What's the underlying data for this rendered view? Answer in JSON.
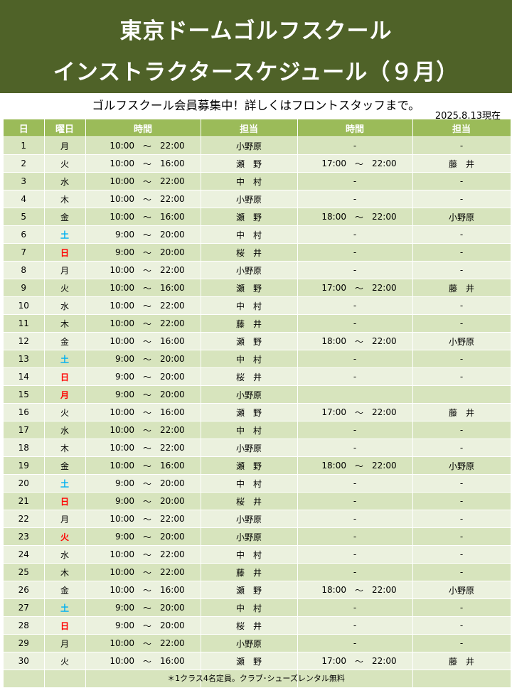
{
  "header": {
    "title_line1": "東京ドームゴルフスクール",
    "title_line2": "インストラクタースケジュール（９月）",
    "subtitle": "ゴルフスクール会員募集中！詳しくはフロントスタッフまで。",
    "as_of": "2025.8.13現在",
    "bg_color": "#4f6228"
  },
  "table": {
    "headers": [
      "日",
      "曜日",
      "時間",
      "担当",
      "時間",
      "担当"
    ],
    "header_color": "#9bbb59",
    "row_colors": [
      "#d7e4bd",
      "#ebf1de"
    ],
    "tilde": "～",
    "rows": [
      {
        "day": "1",
        "weekday": "月",
        "start1": "10:00",
        "end1": "22:00",
        "staff1": "小野原",
        "start2": "",
        "end2": "",
        "dash2": "-",
        "staff2": "-"
      },
      {
        "day": "2",
        "weekday": "火",
        "start1": "10:00",
        "end1": "16:00",
        "staff1": "瀬　野",
        "start2": "17:00",
        "end2": "22:00",
        "dash2": "",
        "staff2": "藤　井"
      },
      {
        "day": "3",
        "weekday": "水",
        "start1": "10:00",
        "end1": "22:00",
        "staff1": "中　村",
        "start2": "",
        "end2": "",
        "dash2": "-",
        "staff2": "-"
      },
      {
        "day": "4",
        "weekday": "木",
        "start1": "10:00",
        "end1": "22:00",
        "staff1": "小野原",
        "start2": "",
        "end2": "",
        "dash2": "-",
        "staff2": "-"
      },
      {
        "day": "5",
        "weekday": "金",
        "start1": "10:00",
        "end1": "16:00",
        "staff1": "瀬　野",
        "start2": "18:00",
        "end2": "22:00",
        "dash2": "",
        "staff2": "小野原"
      },
      {
        "day": "6",
        "weekday": "土",
        "kind": "sat",
        "start1": "9:00",
        "end1": "20:00",
        "staff1": "中　村",
        "start2": "",
        "end2": "",
        "dash2": "-",
        "staff2": "-"
      },
      {
        "day": "7",
        "weekday": "日",
        "kind": "sun",
        "start1": "9:00",
        "end1": "20:00",
        "staff1": "桜　井",
        "start2": "",
        "end2": "",
        "dash2": "-",
        "staff2": "-"
      },
      {
        "day": "8",
        "weekday": "月",
        "start1": "10:00",
        "end1": "22:00",
        "staff1": "小野原",
        "start2": "",
        "end2": "",
        "dash2": "-",
        "staff2": "-"
      },
      {
        "day": "9",
        "weekday": "火",
        "start1": "10:00",
        "end1": "16:00",
        "staff1": "瀬　野",
        "start2": "17:00",
        "end2": "22:00",
        "dash2": "",
        "staff2": "藤　井"
      },
      {
        "day": "10",
        "weekday": "水",
        "start1": "10:00",
        "end1": "22:00",
        "staff1": "中　村",
        "start2": "",
        "end2": "",
        "dash2": "-",
        "staff2": "-"
      },
      {
        "day": "11",
        "weekday": "木",
        "start1": "10:00",
        "end1": "22:00",
        "staff1": "藤　井",
        "start2": "",
        "end2": "",
        "dash2": "-",
        "staff2": "-"
      },
      {
        "day": "12",
        "weekday": "金",
        "start1": "10:00",
        "end1": "16:00",
        "staff1": "瀬　野",
        "start2": "18:00",
        "end2": "22:00",
        "dash2": "",
        "staff2": "小野原"
      },
      {
        "day": "13",
        "weekday": "土",
        "kind": "sat",
        "start1": "9:00",
        "end1": "20:00",
        "staff1": "中　村",
        "start2": "",
        "end2": "",
        "dash2": "-",
        "staff2": "-"
      },
      {
        "day": "14",
        "weekday": "日",
        "kind": "sun",
        "start1": "9:00",
        "end1": "20:00",
        "staff1": "桜　井",
        "start2": "",
        "end2": "",
        "dash2": "-",
        "staff2": "-"
      },
      {
        "day": "15",
        "weekday": "月",
        "kind": "hol",
        "start1": "9:00",
        "end1": "20:00",
        "staff1": "小野原",
        "start2": "",
        "end2": "",
        "dash2": "",
        "staff2": ""
      },
      {
        "day": "16",
        "weekday": "火",
        "start1": "10:00",
        "end1": "16:00",
        "staff1": "瀬　野",
        "start2": "17:00",
        "end2": "22:00",
        "dash2": "",
        "staff2": "藤　井"
      },
      {
        "day": "17",
        "weekday": "水",
        "start1": "10:00",
        "end1": "22:00",
        "staff1": "中　村",
        "start2": "",
        "end2": "",
        "dash2": "-",
        "staff2": "-"
      },
      {
        "day": "18",
        "weekday": "木",
        "start1": "10:00",
        "end1": "22:00",
        "staff1": "小野原",
        "start2": "",
        "end2": "",
        "dash2": "-",
        "staff2": "-"
      },
      {
        "day": "19",
        "weekday": "金",
        "start1": "10:00",
        "end1": "16:00",
        "staff1": "瀬　野",
        "start2": "18:00",
        "end2": "22:00",
        "dash2": "",
        "staff2": "小野原"
      },
      {
        "day": "20",
        "weekday": "土",
        "kind": "sat",
        "start1": "9:00",
        "end1": "20:00",
        "staff1": "中　村",
        "start2": "",
        "end2": "",
        "dash2": "-",
        "staff2": "-"
      },
      {
        "day": "21",
        "weekday": "日",
        "kind": "sun",
        "start1": "9:00",
        "end1": "20:00",
        "staff1": "桜　井",
        "start2": "",
        "end2": "",
        "dash2": "-",
        "staff2": "-"
      },
      {
        "day": "22",
        "weekday": "月",
        "start1": "10:00",
        "end1": "22:00",
        "staff1": "小野原",
        "start2": "",
        "end2": "",
        "dash2": "-",
        "staff2": "-"
      },
      {
        "day": "23",
        "weekday": "火",
        "kind": "hol",
        "start1": "9:00",
        "end1": "20:00",
        "staff1": "小野原",
        "start2": "",
        "end2": "",
        "dash2": "-",
        "staff2": "-"
      },
      {
        "day": "24",
        "weekday": "水",
        "start1": "10:00",
        "end1": "22:00",
        "staff1": "中　村",
        "start2": "",
        "end2": "",
        "dash2": "-",
        "staff2": "-"
      },
      {
        "day": "25",
        "weekday": "木",
        "start1": "10:00",
        "end1": "22:00",
        "staff1": "藤　井",
        "start2": "",
        "end2": "",
        "dash2": "-",
        "staff2": "-"
      },
      {
        "day": "26",
        "weekday": "金",
        "start1": "10:00",
        "end1": "16:00",
        "staff1": "瀬　野",
        "start2": "18:00",
        "end2": "22:00",
        "dash2": "",
        "staff2": "小野原"
      },
      {
        "day": "27",
        "weekday": "土",
        "kind": "sat",
        "start1": "9:00",
        "end1": "20:00",
        "staff1": "中　村",
        "start2": "",
        "end2": "",
        "dash2": "-",
        "staff2": "-"
      },
      {
        "day": "28",
        "weekday": "日",
        "kind": "sun",
        "start1": "9:00",
        "end1": "20:00",
        "staff1": "桜　井",
        "start2": "",
        "end2": "",
        "dash2": "-",
        "staff2": "-"
      },
      {
        "day": "29",
        "weekday": "月",
        "start1": "10:00",
        "end1": "22:00",
        "staff1": "小野原",
        "start2": "",
        "end2": "",
        "dash2": "-",
        "staff2": "-"
      },
      {
        "day": "30",
        "weekday": "火",
        "start1": "10:00",
        "end1": "16:00",
        "staff1": "瀬　野",
        "start2": "17:00",
        "end2": "22:00",
        "dash2": "",
        "staff2": "藤　井"
      },
      {
        "day": "",
        "weekday": "",
        "start1": "",
        "end1": "",
        "staff1": "",
        "start2": "",
        "end2": "",
        "dash2": "",
        "staff2": ""
      }
    ]
  },
  "footer": {
    "note": "＊1クラス4名定員。クラブ･シューズレンタル無料"
  }
}
